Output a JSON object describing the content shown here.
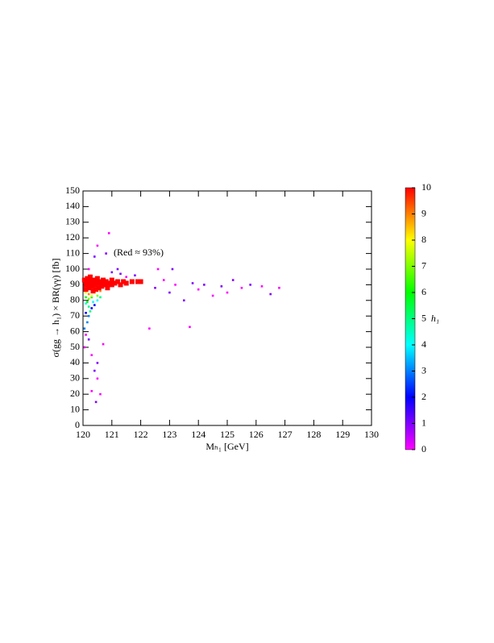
{
  "chart_data": {
    "type": "scatter",
    "x_label": "Mₕ₁ [GeV]",
    "y_label": "σ(gg → h₁) × BR(γγ) [fb]",
    "annotation": "(Red ≈ 93%)",
    "colorbar_label": "h₁",
    "xlim": [
      120,
      130
    ],
    "xticks": [
      120,
      121,
      122,
      123,
      124,
      125,
      126,
      127,
      128,
      129,
      130
    ],
    "ylim": [
      0,
      150
    ],
    "yticks": [
      0,
      10,
      20,
      30,
      40,
      50,
      60,
      70,
      80,
      90,
      100,
      110,
      120,
      130,
      140,
      150
    ],
    "clim": [
      0,
      10
    ],
    "cticks": [
      0,
      1,
      2,
      3,
      4,
      5,
      6,
      7,
      8,
      9,
      10
    ],
    "colormap": [
      "#ff00ff",
      "#0000ff",
      "#00ffff",
      "#00ff00",
      "#ffff00",
      "#ff0000"
    ],
    "x": [
      120.1,
      120.05,
      120.2,
      120.3,
      120.4,
      120.5,
      120.6,
      120.45,
      120.3,
      120.5,
      120.7,
      120.2,
      120.4,
      120.5,
      120.8,
      120.9,
      121.0,
      121.3,
      121.5,
      121.8,
      122.3,
      122.5,
      122.8,
      123.0,
      123.2,
      123.5,
      123.7,
      123.8,
      124.0,
      124.2,
      124.5,
      124.8,
      125.0,
      125.2,
      125.5,
      125.8,
      126.2,
      126.5,
      126.8,
      121.2,
      122.6,
      123.1,
      120.1,
      120.2,
      120.3,
      120.15,
      120.4,
      120.05,
      120.1,
      120.2,
      120.35,
      120.25,
      120.5,
      120.6,
      120.1,
      120.2,
      120.3,
      120.5,
      120.15,
      120.1,
      120.2,
      120.4,
      120.6,
      120.3,
      120.05,
      120.1,
      120.1,
      120.15,
      120.2,
      120.2,
      120.25,
      120.3,
      120.3,
      120.35,
      120.4,
      120.4,
      120.45,
      120.5,
      120.5,
      120.55,
      120.6,
      120.65,
      120.7,
      120.75,
      120.8,
      120.85,
      120.9,
      121.0,
      121.0,
      121.1,
      121.2,
      121.3,
      121.4,
      121.5,
      121.7,
      121.9,
      122.0
    ],
    "values": [
      58,
      50,
      55,
      45,
      35,
      30,
      20,
      15,
      22,
      40,
      52,
      100,
      108,
      115,
      110,
      123,
      98,
      97,
      95,
      96,
      62,
      88,
      93,
      85,
      90,
      80,
      63,
      91,
      87,
      90,
      83,
      89,
      85,
      93,
      88,
      90,
      89,
      84,
      88,
      100,
      100,
      100,
      72,
      70,
      75,
      66,
      77,
      62,
      78,
      76,
      79,
      73,
      80,
      82,
      82,
      81,
      82,
      83,
      79,
      85,
      84,
      85,
      86,
      83,
      93,
      90,
      87,
      94,
      91,
      88,
      95,
      92,
      89,
      86,
      93,
      90,
      87,
      94,
      91,
      88,
      92,
      89,
      93,
      90,
      92,
      88,
      91,
      93,
      90,
      91,
      92,
      90,
      92,
      91,
      92,
      92,
      92
    ],
    "color_values": [
      0,
      0,
      1,
      0,
      1,
      0,
      0,
      1,
      0,
      1,
      0,
      0,
      1,
      0,
      1,
      0,
      1,
      1,
      0,
      1,
      0,
      1,
      0,
      1,
      0,
      1,
      0,
      1,
      0,
      1,
      0,
      1,
      0,
      1,
      0,
      1,
      0,
      1,
      0,
      1,
      0,
      1,
      2,
      3,
      2,
      3,
      2,
      3,
      4,
      5,
      4,
      5,
      4,
      5,
      6,
      7,
      6,
      7,
      6,
      8,
      9,
      8,
      9,
      8,
      10,
      10,
      10,
      10,
      10,
      10,
      10,
      10,
      10,
      10,
      10,
      10,
      10,
      10,
      10,
      10,
      10,
      10,
      10,
      10,
      10,
      10,
      10,
      10,
      10,
      10,
      10,
      10,
      10,
      10,
      10,
      10,
      10
    ]
  }
}
